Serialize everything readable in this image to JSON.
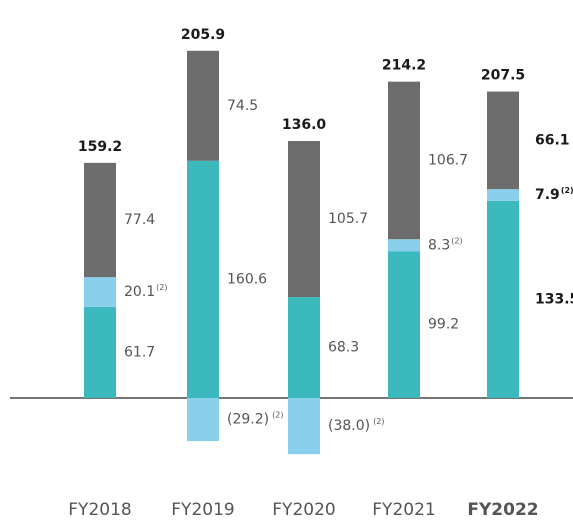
{
  "chart_data": {
    "type": "stacked_bar",
    "categories": [
      "FY2018",
      "FY2019",
      "FY2020",
      "FY2021",
      "FY2022"
    ],
    "series": [
      {
        "name": null,
        "color": "#3cb9bd",
        "values": [
          61.7,
          160.6,
          68.3,
          99.2,
          133.5
        ]
      },
      {
        "name": null,
        "color": "#8ad0ec",
        "values": [
          20.1,
          -29.2,
          -38.0,
          8.3,
          7.9
        ],
        "value_labels": [
          "20.1",
          "(29.2)",
          "(38.0)",
          "8.3",
          "7.9"
        ]
      },
      {
        "name": null,
        "color": "#6c6c6c",
        "values": [
          77.4,
          74.5,
          105.7,
          106.7,
          66.1
        ]
      }
    ],
    "totals": {
      "values": [
        159.2,
        205.9,
        136.0,
        214.2,
        207.5
      ],
      "value_labels": [
        "159.2",
        "205.9",
        "136.0",
        "214.2",
        "207.5"
      ]
    },
    "footnote_mark": "(2)",
    "footnote_series": 1,
    "ylim": [
      -60,
      260
    ]
  }
}
